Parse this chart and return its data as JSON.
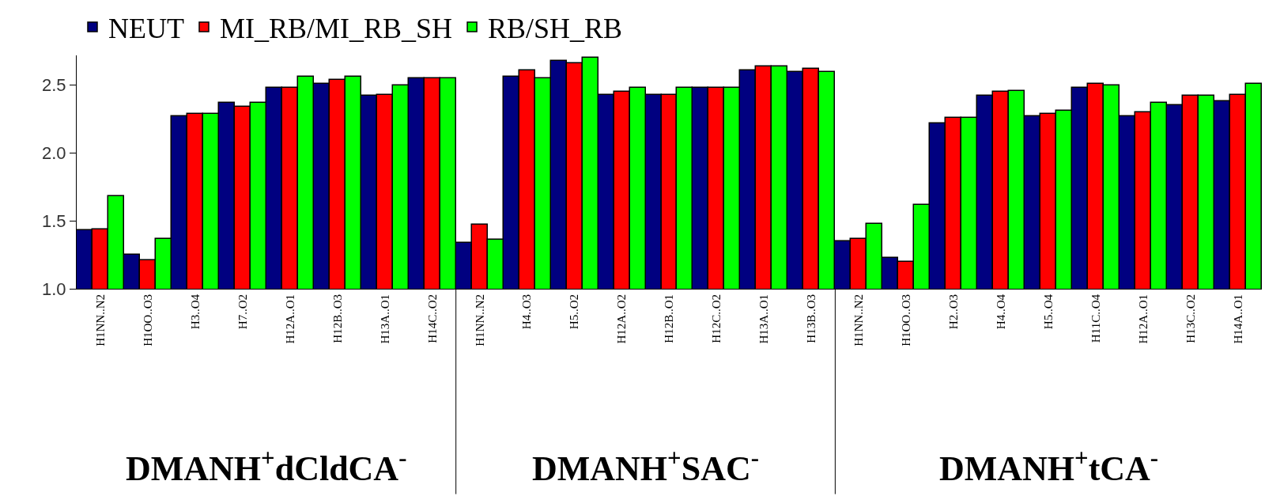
{
  "chart_data": {
    "type": "bar",
    "categories": [
      "H1NN..N2",
      "H1OO..O3",
      "H3..O4",
      "H7..O2",
      "H12A..O1",
      "H12B..O3",
      "H13A..O1",
      "H14C..O2",
      "H1NN..N2",
      "H4..O3",
      "H5..O2",
      "H12A..O2",
      "H12B..O1",
      "H12C..O2",
      "H13A..O1",
      "H13B..O3",
      "H1NN..N2",
      "H1OO..O3",
      "H2..O3",
      "H4..O4",
      "H5..O4",
      "H11C..O4",
      "H12A..O1",
      "H13C..O2",
      "H14A..O1"
    ],
    "series": [
      {
        "name": "NEUT",
        "color": "#000080",
        "values": [
          1.43,
          1.25,
          2.27,
          2.37,
          2.48,
          2.51,
          2.42,
          2.55,
          1.34,
          2.56,
          2.68,
          2.43,
          2.43,
          2.48,
          2.61,
          2.6,
          1.35,
          1.23,
          2.22,
          2.42,
          2.27,
          2.48,
          2.27,
          2.35,
          2.38
        ]
      },
      {
        "name": "MI_RB/MI_RB_SH",
        "color": "#ff0000",
        "values": [
          1.44,
          1.21,
          2.29,
          2.34,
          2.48,
          2.54,
          2.43,
          2.55,
          1.47,
          2.61,
          2.66,
          2.45,
          2.43,
          2.48,
          2.64,
          2.62,
          1.37,
          1.2,
          2.26,
          2.45,
          2.29,
          2.51,
          2.3,
          2.42,
          2.43
        ]
      },
      {
        "name": "RB/SH_RB",
        "color": "#00ff00",
        "values": [
          1.68,
          1.37,
          2.29,
          2.37,
          2.56,
          2.56,
          2.5,
          2.55,
          1.36,
          2.55,
          2.7,
          2.48,
          2.48,
          2.48,
          2.64,
          2.6,
          1.48,
          1.62,
          2.26,
          2.46,
          2.31,
          2.5,
          2.37,
          2.42,
          2.51
        ]
      }
    ],
    "ylim": [
      1.0,
      2.72
    ],
    "yticks": [
      {
        "value": 1.0,
        "label": "1.0"
      },
      {
        "value": 1.5,
        "label": "1.5"
      },
      {
        "value": 2.0,
        "label": "2.0"
      },
      {
        "value": 2.5,
        "label": "2.5"
      }
    ],
    "annotations": [
      "DMANH$^{+}$dCldCA$^{-}$",
      "DMANH$^{+}$SAC$^{-}$",
      "DMANH$^{+}$tCA$^{-}$"
    ],
    "grid": false,
    "legend": "top left"
  }
}
